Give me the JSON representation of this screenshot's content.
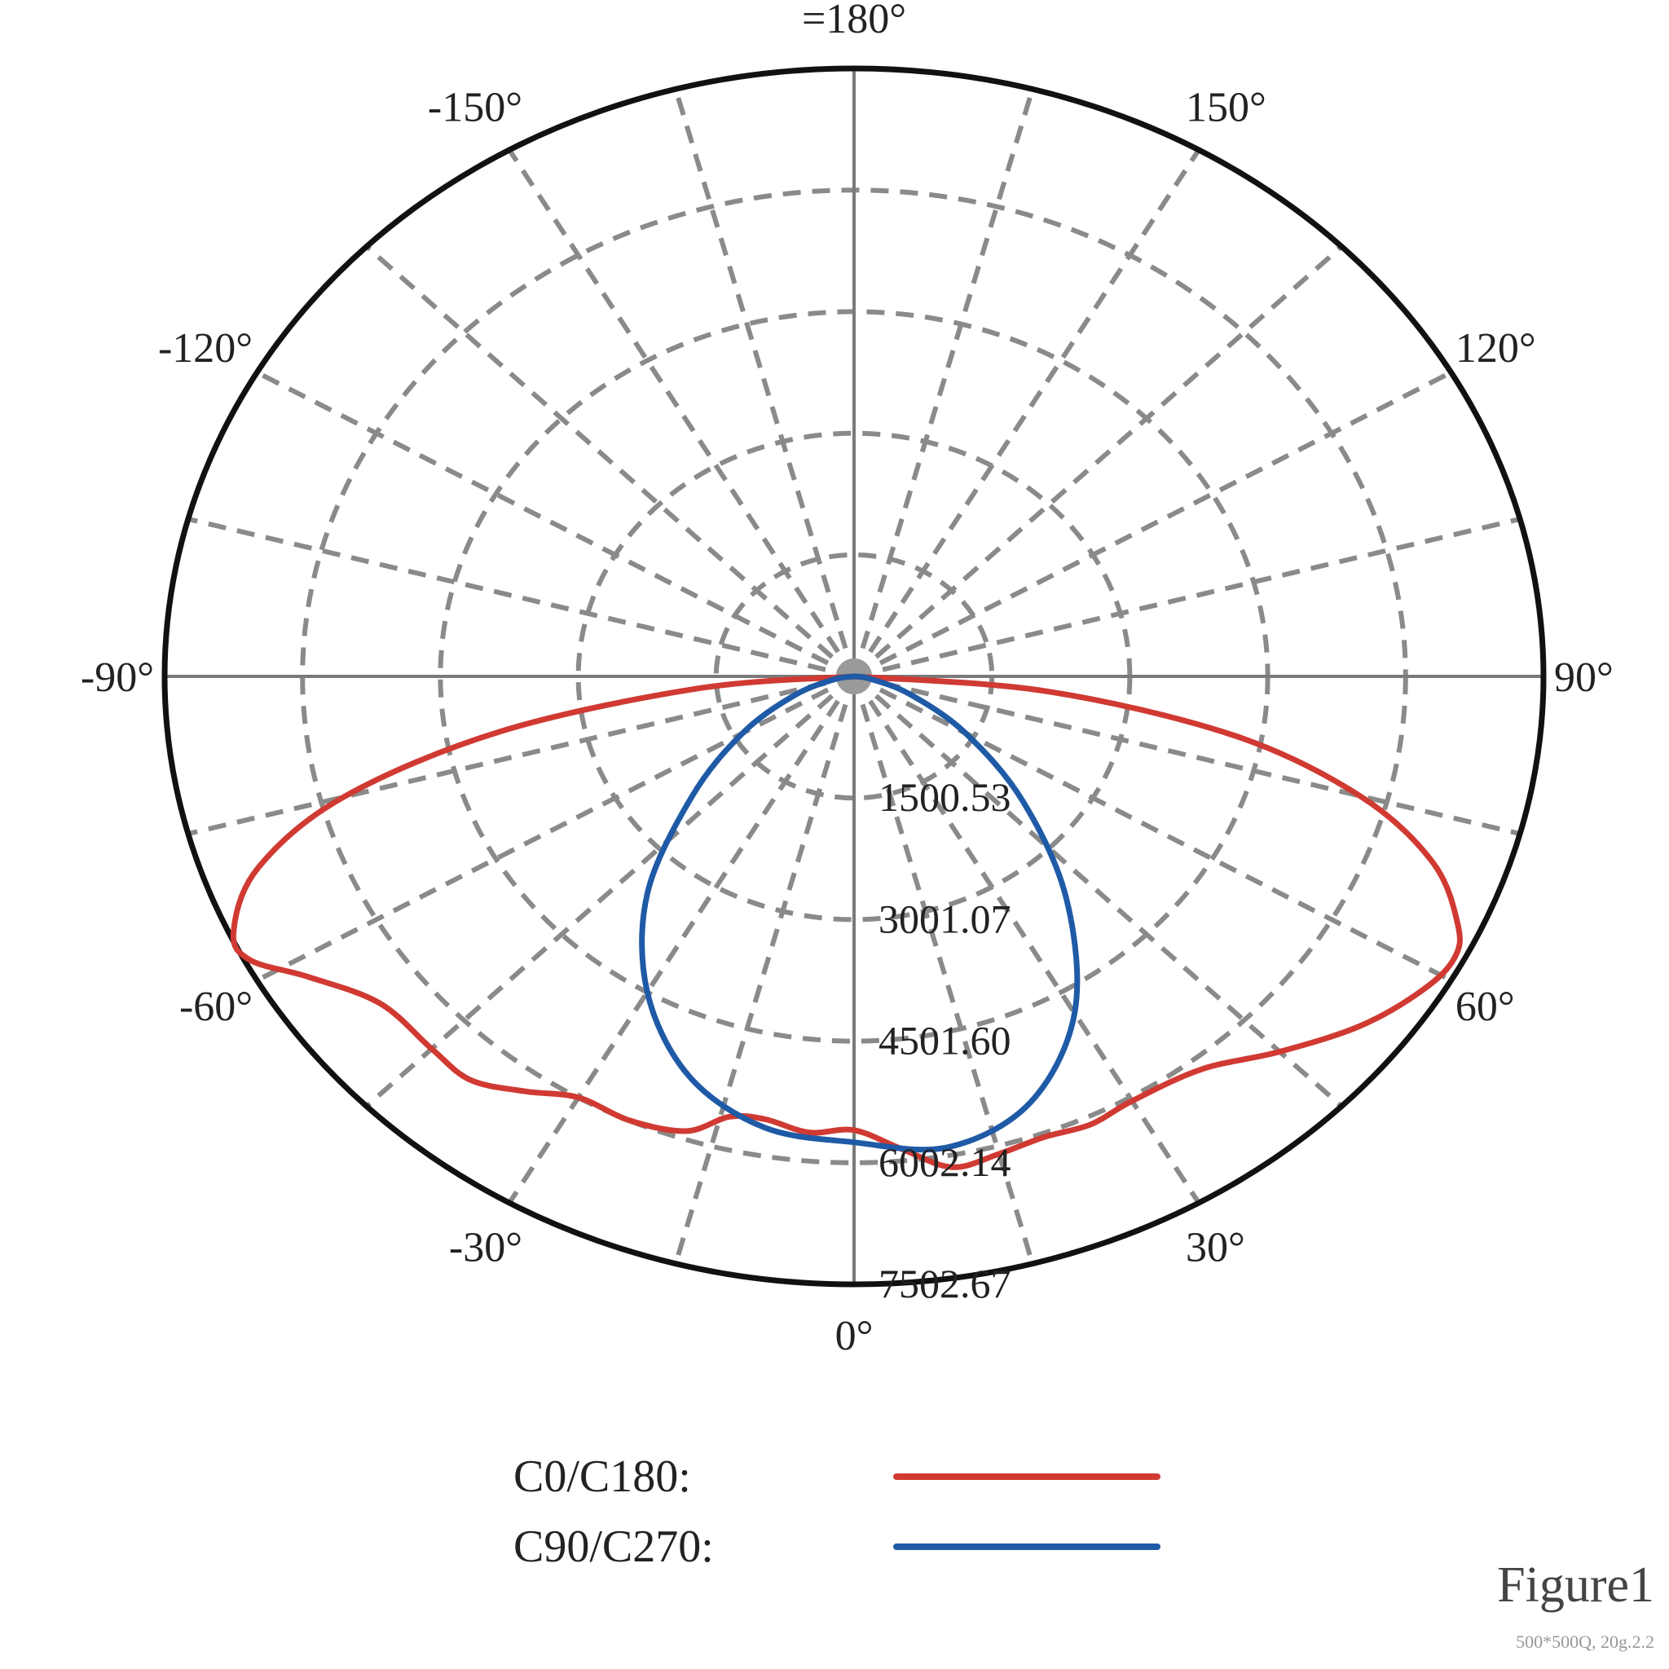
{
  "chart_data": {
    "type": "polar-line",
    "angle_labels": [
      {
        "deg": 0,
        "text": "0°"
      },
      {
        "deg": 30,
        "text": "30°"
      },
      {
        "deg": 60,
        "text": "60°"
      },
      {
        "deg": 90,
        "text": "90°"
      },
      {
        "deg": 120,
        "text": "120°"
      },
      {
        "deg": 150,
        "text": "150°"
      },
      {
        "deg": 180,
        "text": "=180°"
      },
      {
        "deg": -150,
        "text": "-150°"
      },
      {
        "deg": -120,
        "text": "-120°"
      },
      {
        "deg": -90,
        "text": "-90°"
      },
      {
        "deg": -60,
        "text": "-60°"
      },
      {
        "deg": -30,
        "text": "-30°"
      }
    ],
    "radial_ticks": [
      {
        "value": 1500.53,
        "text": "1500.53"
      },
      {
        "value": 3001.07,
        "text": "3001.07"
      },
      {
        "value": 4501.6,
        "text": "4501.60"
      },
      {
        "value": 6002.14,
        "text": "6002.14"
      },
      {
        "value": 7502.67,
        "text": "7502.67"
      }
    ],
    "rmax": 7502.67,
    "angle_grid_step": 15,
    "grid": true,
    "legend_position": "bottom",
    "series": [
      {
        "name": "C0/C180:",
        "color": "#d03a32",
        "points": [
          {
            "theta": -90,
            "r": 0
          },
          {
            "theta": -85,
            "r": 1700
          },
          {
            "theta": -80,
            "r": 3900
          },
          {
            "theta": -75,
            "r": 5750
          },
          {
            "theta": -70,
            "r": 6900
          },
          {
            "theta": -65,
            "r": 7450
          },
          {
            "theta": -62,
            "r": 7450
          },
          {
            "theta": -58,
            "r": 7000
          },
          {
            "theta": -52,
            "r": 6550
          },
          {
            "theta": -45,
            "r": 6500
          },
          {
            "theta": -40,
            "r": 6500
          },
          {
            "theta": -35,
            "r": 6250
          },
          {
            "theta": -30,
            "r": 6000
          },
          {
            "theta": -24,
            "r": 6000
          },
          {
            "theta": -18,
            "r": 5900
          },
          {
            "theta": -14,
            "r": 5600
          },
          {
            "theta": -10,
            "r": 5550
          },
          {
            "theta": -5,
            "r": 5650
          },
          {
            "theta": 0,
            "r": 5600
          },
          {
            "theta": 5,
            "r": 5850
          },
          {
            "theta": 10,
            "r": 6150
          },
          {
            "theta": 15,
            "r": 6100
          },
          {
            "theta": 20,
            "r": 6050
          },
          {
            "theta": 25,
            "r": 6100
          },
          {
            "theta": 30,
            "r": 6050
          },
          {
            "theta": 38,
            "r": 6150
          },
          {
            "theta": 45,
            "r": 6550
          },
          {
            "theta": 52,
            "r": 7000
          },
          {
            "theta": 58,
            "r": 7300
          },
          {
            "theta": 62,
            "r": 7400
          },
          {
            "theta": 65,
            "r": 7250
          },
          {
            "theta": 70,
            "r": 6700
          },
          {
            "theta": 75,
            "r": 5700
          },
          {
            "theta": 80,
            "r": 4200
          },
          {
            "theta": 85,
            "r": 2100
          },
          {
            "theta": 90,
            "r": 0
          }
        ]
      },
      {
        "name": "C90/C270:",
        "color": "#1f5aa6",
        "points": [
          {
            "theta": -90,
            "r": 0
          },
          {
            "theta": -80,
            "r": 230
          },
          {
            "theta": -70,
            "r": 700
          },
          {
            "theta": -60,
            "r": 1400
          },
          {
            "theta": -50,
            "r": 2300
          },
          {
            "theta": -40,
            "r": 3500
          },
          {
            "theta": -30,
            "r": 4500
          },
          {
            "theta": -20,
            "r": 5250
          },
          {
            "theta": -10,
            "r": 5650
          },
          {
            "theta": 0,
            "r": 5750
          },
          {
            "theta": 10,
            "r": 5900
          },
          {
            "theta": 20,
            "r": 5600
          },
          {
            "theta": 30,
            "r": 4800
          },
          {
            "theta": 40,
            "r": 3600
          },
          {
            "theta": 50,
            "r": 2400
          },
          {
            "theta": 60,
            "r": 1400
          },
          {
            "theta": 70,
            "r": 650
          },
          {
            "theta": 80,
            "r": 180
          },
          {
            "theta": 90,
            "r": 0
          }
        ]
      }
    ]
  },
  "figure": {
    "title": "Figure1",
    "subtitle": "500*500Q, 20g.2.2"
  }
}
